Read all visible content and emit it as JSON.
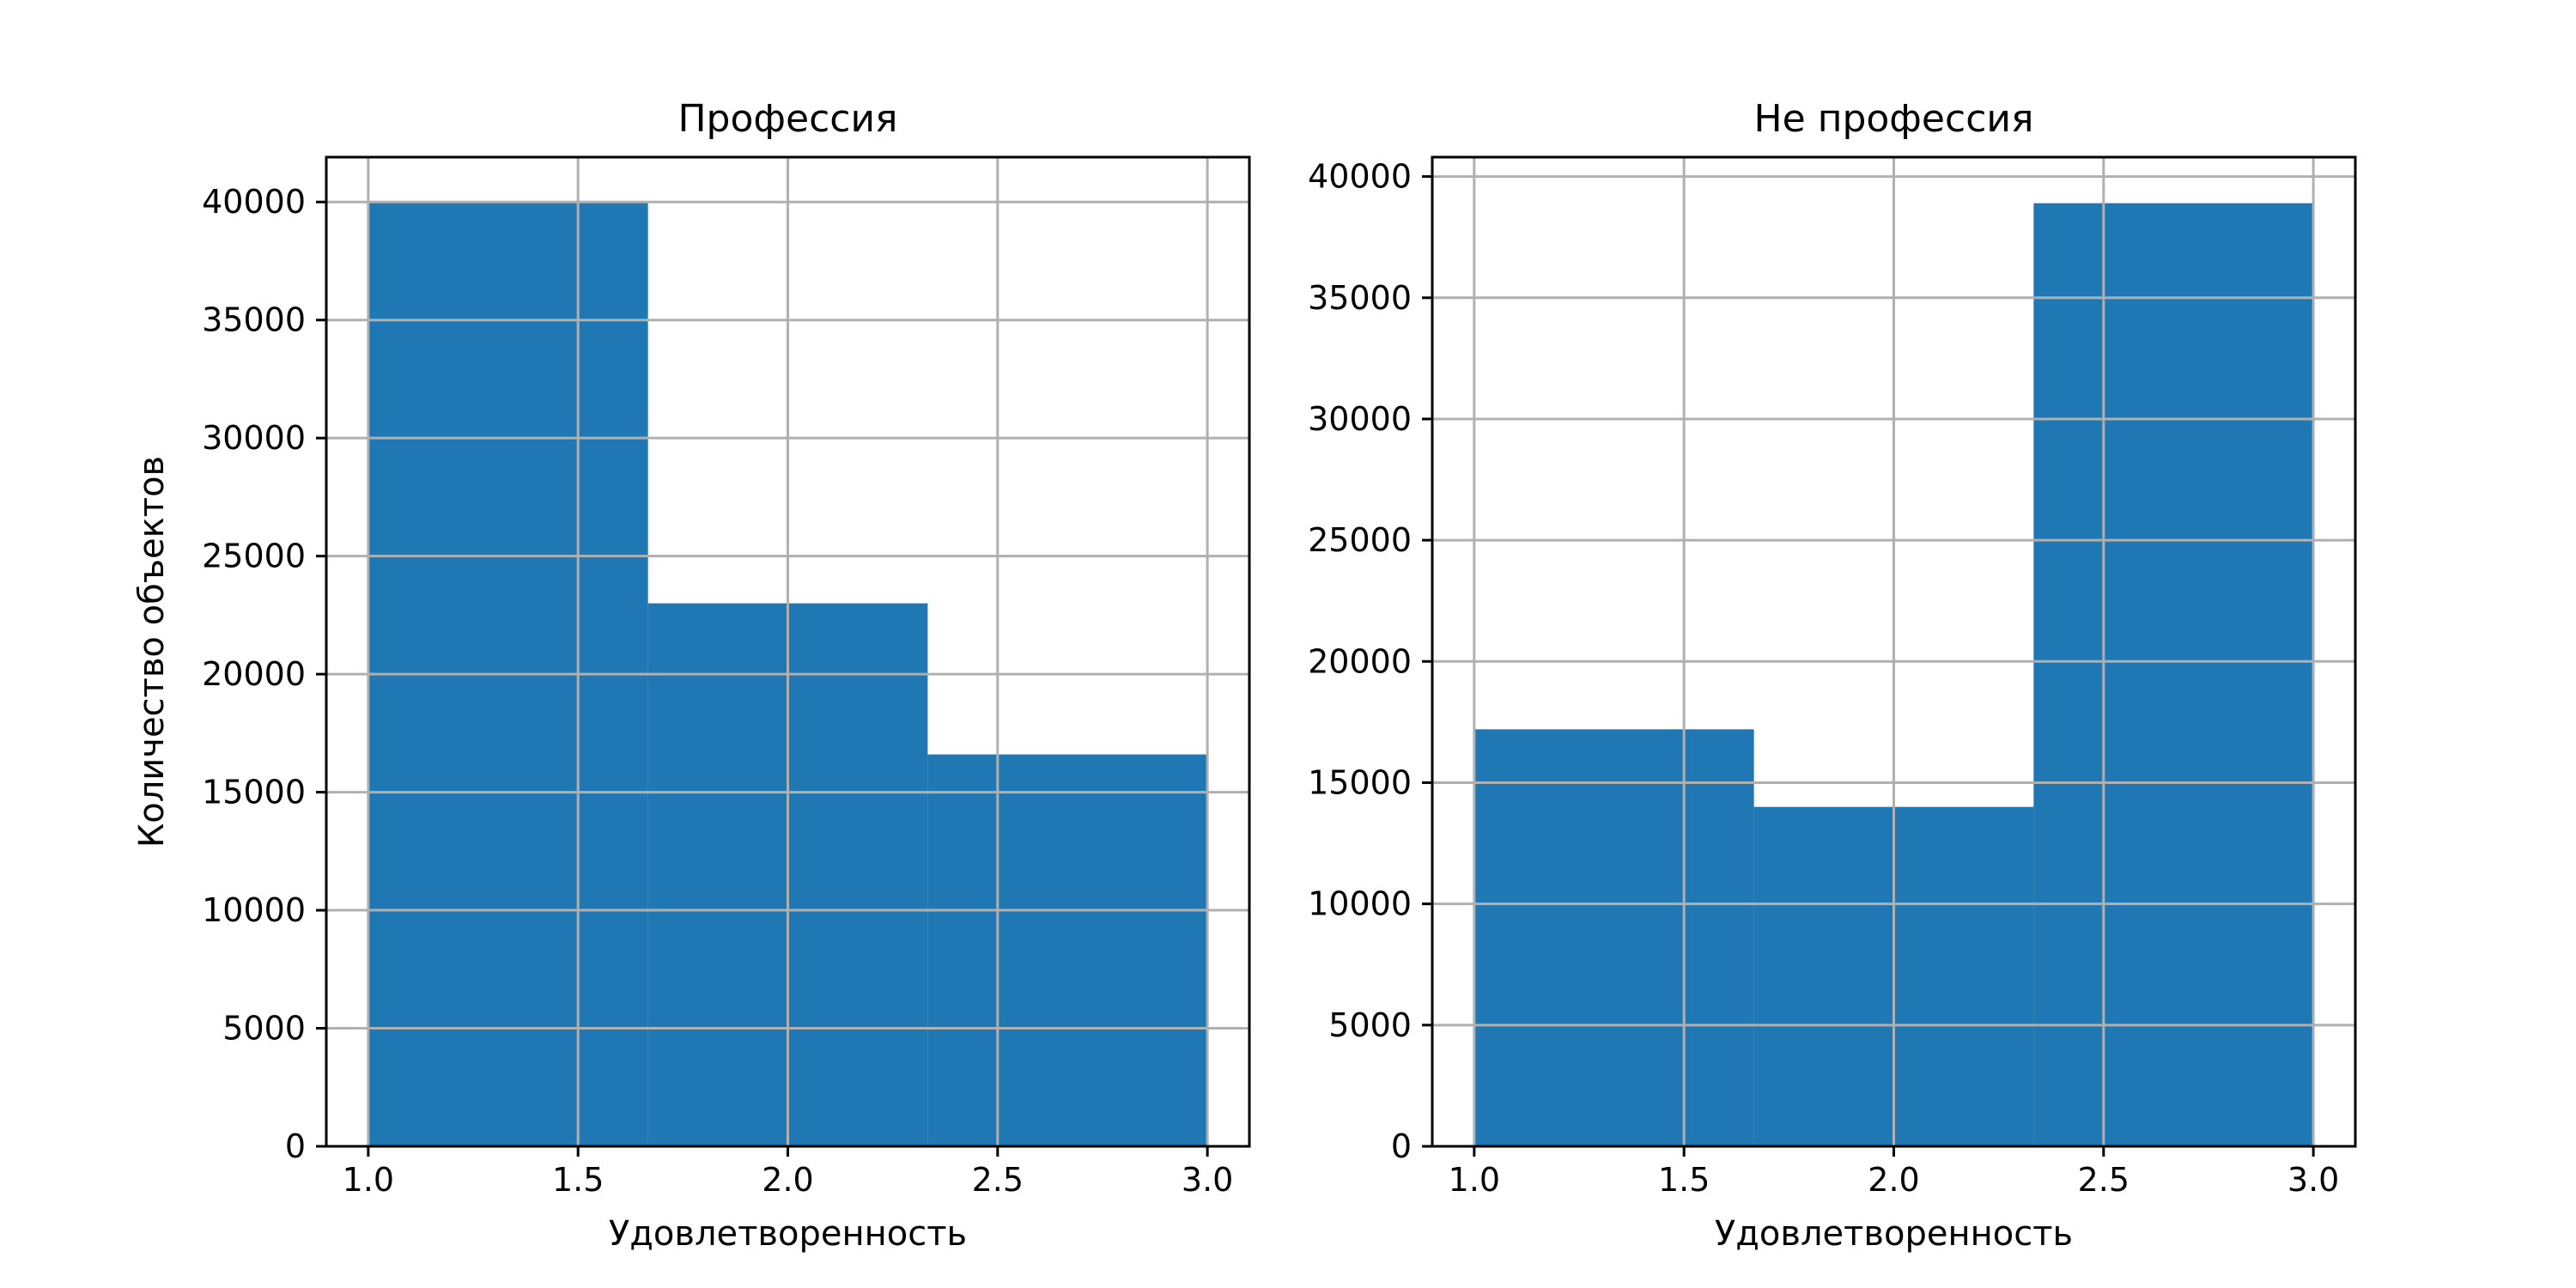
{
  "chart_data": [
    {
      "type": "bar",
      "title": "Профессия",
      "xlabel": "Удовлетворенность",
      "ylabel": "Количество объектов",
      "bins": [
        [
          1.0,
          1.6667
        ],
        [
          1.6667,
          2.3333
        ],
        [
          2.3333,
          3.0
        ]
      ],
      "values": [
        40000,
        23000,
        16600
      ],
      "xlim": [
        0.9,
        3.1
      ],
      "ylim": [
        0,
        41900
      ],
      "xticks": [
        "1.0",
        "1.5",
        "2.0",
        "2.5",
        "3.0"
      ],
      "yticks": [
        "0",
        "5000",
        "10000",
        "15000",
        "20000",
        "25000",
        "30000",
        "35000",
        "40000"
      ],
      "grid": true,
      "color": "#1f77b4"
    },
    {
      "type": "bar",
      "title": "Не профессия",
      "xlabel": "Удовлетворенность",
      "ylabel": "",
      "bins": [
        [
          1.0,
          1.6667
        ],
        [
          1.6667,
          2.3333
        ],
        [
          2.3333,
          3.0
        ]
      ],
      "values": [
        17200,
        14000,
        38900
      ],
      "xlim": [
        0.9,
        3.1
      ],
      "ylim": [
        0,
        40800
      ],
      "xticks": [
        "1.0",
        "1.5",
        "2.0",
        "2.5",
        "3.0"
      ],
      "yticks": [
        "0",
        "5000",
        "10000",
        "15000",
        "20000",
        "25000",
        "30000",
        "35000",
        "40000"
      ],
      "grid": true,
      "color": "#1f77b4"
    }
  ]
}
